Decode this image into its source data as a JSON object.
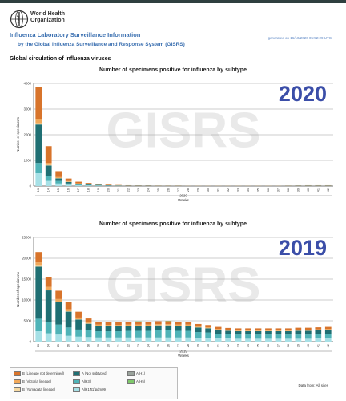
{
  "header": {
    "org_line1": "World Health",
    "org_line2": "Organization",
    "system_title": "Influenza Laboratory Surveillance Information",
    "system_subtitle": "by the Global Influenza Surveillance and Response System (GISRS)",
    "generated": "generated on 16/10/2020 05:52:29 UTC",
    "global_title": "Global circulation of influenza viruses"
  },
  "colors": {
    "B_lineage_not_determined": "#d8742b",
    "B_victoria": "#f0a85a",
    "B_yamagata": "#f6d9a2",
    "A_not_subtyped": "#1f6f73",
    "A_H3": "#4fb3b7",
    "A_H1N1pdm09": "#a6e0e6",
    "A_H1": "#9aa39c",
    "A_H5": "#7fc96b",
    "watermark": "#e9e9e9",
    "year_label": "#3b4ea8"
  },
  "legend": {
    "items": [
      {
        "label": "B (Lineage not determined)",
        "color": "#d8742b"
      },
      {
        "label": "B (Victoria lineage)",
        "color": "#f0a85a"
      },
      {
        "label": "B (Yamagata lineage)",
        "color": "#f6d9a2"
      },
      {
        "label": "A (Not subtyped)",
        "color": "#1f6f73"
      },
      {
        "label": "A(H3)",
        "color": "#4fb3b7"
      },
      {
        "label": "A(H1N1)pdm09",
        "color": "#a6e0e6"
      },
      {
        "label": "A(H1)",
        "color": "#9aa39c"
      },
      {
        "label": "A(H5)",
        "color": "#7fc96b"
      }
    ]
  },
  "data_from": "Data from: All sites",
  "chart_data": [
    {
      "type": "bar",
      "stacked": true,
      "title": "Number of specimens positive for influenza by subtype",
      "year_label": "2020",
      "watermark": "GISRS",
      "ylabel": "Number of specimens",
      "xlabel": "Weeks",
      "xgroup_label": "2020",
      "ylim": [
        0,
        4000
      ],
      "yticks": [
        0,
        1000,
        2000,
        3000,
        4000
      ],
      "grid": true,
      "categories": [
        "13",
        "14",
        "15",
        "16",
        "17",
        "18",
        "19",
        "20",
        "21",
        "22",
        "23",
        "24",
        "25",
        "26",
        "27",
        "28",
        "29",
        "30",
        "31",
        "32",
        "33",
        "34",
        "35",
        "36",
        "37",
        "38",
        "39",
        "40",
        "41",
        "42"
      ],
      "series": [
        {
          "name": "A(H1N1)pdm09",
          "values": [
            500,
            200,
            100,
            50,
            30,
            20,
            15,
            10,
            8,
            5,
            5,
            5,
            4,
            4,
            4,
            3,
            3,
            3,
            3,
            3,
            3,
            3,
            3,
            3,
            3,
            4,
            5,
            6,
            6,
            6
          ]
        },
        {
          "name": "A(H3)",
          "values": [
            400,
            200,
            100,
            50,
            25,
            20,
            12,
            10,
            7,
            5,
            5,
            5,
            4,
            4,
            4,
            3,
            3,
            3,
            3,
            3,
            3,
            3,
            3,
            3,
            3,
            4,
            5,
            6,
            6,
            6
          ]
        },
        {
          "name": "A (Not subtyped)",
          "values": [
            1500,
            400,
            100,
            60,
            35,
            25,
            20,
            12,
            8,
            6,
            6,
            6,
            4,
            4,
            4,
            3,
            3,
            3,
            3,
            3,
            3,
            3,
            3,
            3,
            3,
            4,
            5,
            6,
            6,
            6
          ]
        },
        {
          "name": "B (Yamagata lineage)",
          "values": [
            50,
            25,
            10,
            8,
            5,
            4,
            3,
            3,
            2,
            2,
            2,
            2,
            1,
            1,
            1,
            1,
            1,
            1,
            1,
            1,
            1,
            1,
            1,
            1,
            1,
            1,
            1,
            1,
            1,
            1
          ]
        },
        {
          "name": "B (Victoria lineage)",
          "values": [
            150,
            80,
            40,
            25,
            15,
            12,
            8,
            6,
            4,
            4,
            4,
            4,
            3,
            3,
            3,
            2,
            2,
            2,
            2,
            2,
            2,
            2,
            2,
            2,
            2,
            2,
            3,
            3,
            3,
            3
          ]
        },
        {
          "name": "B (Lineage not determined)",
          "values": [
            1250,
            650,
            230,
            100,
            60,
            40,
            25,
            20,
            12,
            10,
            8,
            8,
            6,
            6,
            6,
            5,
            5,
            5,
            5,
            5,
            5,
            5,
            5,
            5,
            5,
            6,
            8,
            10,
            10,
            10
          ]
        }
      ]
    },
    {
      "type": "bar",
      "stacked": true,
      "title": "Number of specimens positive for influenza by subtype",
      "year_label": "2019",
      "watermark": "GISRS",
      "ylabel": "Number of specimens",
      "xlabel": "Weeks",
      "xgroup_label": "2019",
      "ylim": [
        0,
        25000
      ],
      "yticks": [
        0,
        5000,
        10000,
        15000,
        20000,
        25000
      ],
      "grid": true,
      "categories": [
        "13",
        "14",
        "15",
        "16",
        "17",
        "18",
        "19",
        "20",
        "21",
        "22",
        "23",
        "24",
        "25",
        "26",
        "27",
        "28",
        "29",
        "30",
        "31",
        "32",
        "33",
        "34",
        "35",
        "36",
        "37",
        "38",
        "39",
        "40",
        "41",
        "42"
      ],
      "series": [
        {
          "name": "A(H1N1)pdm09",
          "values": [
            2500,
            2000,
            1700,
            1400,
            1200,
            1100,
            1000,
            1000,
            1000,
            1000,
            1000,
            1000,
            1000,
            1000,
            1000,
            1000,
            900,
            900,
            800,
            800,
            700,
            700,
            700,
            700,
            700,
            700,
            700,
            700,
            800,
            800
          ]
        },
        {
          "name": "A(H3)",
          "values": [
            3000,
            2800,
            2400,
            2000,
            1700,
            1600,
            1500,
            1500,
            1500,
            1600,
            1600,
            1600,
            1700,
            1700,
            1600,
            1600,
            1400,
            1300,
            1100,
            1000,
            1000,
            1000,
            1000,
            1000,
            1000,
            1000,
            1000,
            1000,
            1000,
            1100
          ]
        },
        {
          "name": "A (Not subtyped)",
          "values": [
            12500,
            7500,
            5400,
            3800,
            2400,
            1600,
            1300,
            1200,
            1200,
            1200,
            1200,
            1200,
            1200,
            1200,
            1200,
            1200,
            1100,
            1000,
            900,
            800,
            800,
            800,
            800,
            800,
            800,
            800,
            900,
            900,
            900,
            900
          ]
        },
        {
          "name": "B (Yamagata lineage)",
          "values": [
            200,
            150,
            120,
            100,
            80,
            60,
            50,
            50,
            50,
            50,
            50,
            50,
            50,
            50,
            50,
            50,
            40,
            40,
            40,
            40,
            40,
            40,
            40,
            40,
            40,
            40,
            40,
            40,
            40,
            40
          ]
        },
        {
          "name": "B (Victoria lineage)",
          "values": [
            800,
            700,
            600,
            500,
            400,
            300,
            250,
            250,
            250,
            250,
            250,
            250,
            250,
            250,
            250,
            250,
            200,
            200,
            200,
            200,
            200,
            200,
            200,
            200,
            200,
            200,
            200,
            200,
            200,
            200
          ]
        },
        {
          "name": "B (Lineage not determined)",
          "values": [
            2500,
            2300,
            2000,
            1700,
            1400,
            900,
            700,
            650,
            700,
            700,
            700,
            700,
            700,
            700,
            650,
            600,
            600,
            550,
            500,
            450,
            450,
            450,
            450,
            450,
            450,
            450,
            500,
            500,
            500,
            500
          ]
        },
        {
          "name": "A(H5)",
          "values": [
            0,
            0,
            0,
            0,
            0,
            0,
            0,
            80,
            0,
            0,
            80,
            0,
            0,
            80,
            0,
            0,
            0,
            0,
            0,
            0,
            0,
            0,
            0,
            0,
            0,
            0,
            0,
            0,
            0,
            0
          ]
        }
      ]
    }
  ]
}
